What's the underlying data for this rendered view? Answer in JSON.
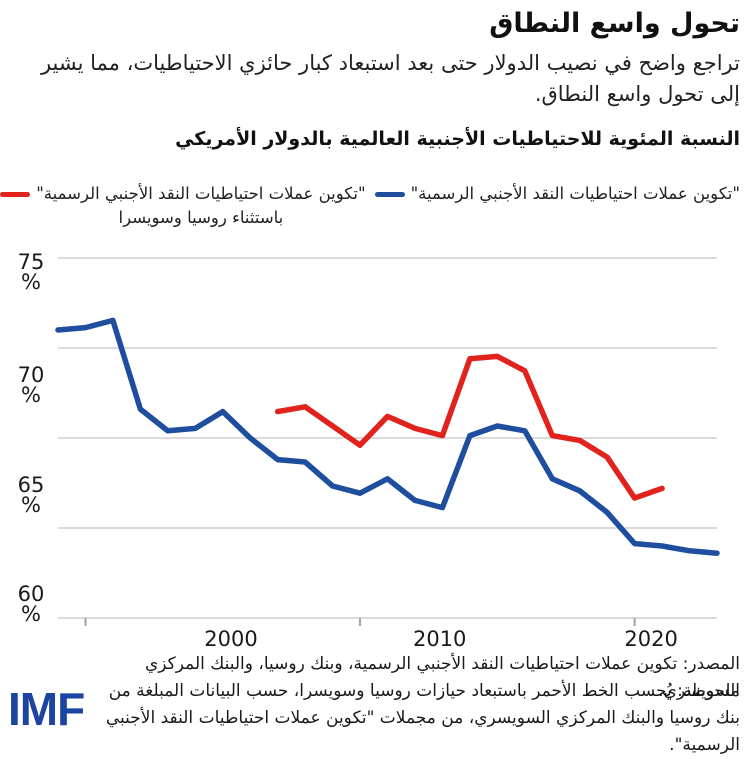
{
  "page": {
    "title": "تحول واسع النطاق",
    "subtitle": "تراجع واضح في نصيب الدولار حتى بعد استبعاد كبار حائزي الاحتياطيات، مما يشير إلى تحول واسع النطاق."
  },
  "chart_data": {
    "type": "line",
    "title": "النسبة المئوية للاحتياطيات الأجنبية العالمية بالدولار الأمريكي",
    "ylabel": "%",
    "xlim": [
      1999,
      2023
    ],
    "ylim": [
      60,
      75
    ],
    "grid": "horizontal",
    "legend_position": "top",
    "gridline_values": [
      75,
      71.25,
      67.5,
      63.75,
      60
    ],
    "yticks": [
      {
        "label": "75",
        "suffix": "%",
        "value": 75,
        "label_center_value": 74.46
      },
      {
        "label": "70",
        "suffix": "%",
        "value": 70,
        "label_center_value": 69.75
      },
      {
        "label": "65",
        "suffix": "%",
        "value": 65,
        "label_center_value": 65.17
      },
      {
        "label": "60",
        "suffix": "%",
        "value": 60,
        "label_center_value": 60.63
      }
    ],
    "xticks": [
      {
        "label": "2000",
        "tick_at": 2000,
        "label_at": 2005.3
      },
      {
        "label": "2010",
        "tick_at": 2010,
        "label_at": 2012.9
      },
      {
        "label": "2020",
        "tick_at": 2020,
        "label_at": 2020.6
      }
    ],
    "series": [
      {
        "id": "usd-share-official",
        "name": "\"تكوين عملات احتياطيات النقد الأجنبي الرسمية\"",
        "color": "#1f4e9f",
        "start_year": 1999,
        "values": [
          72.0,
          72.1,
          72.4,
          68.7,
          67.8,
          67.9,
          68.6,
          67.5,
          66.6,
          66.5,
          65.5,
          65.2,
          65.8,
          64.9,
          64.6,
          67.6,
          68.0,
          67.8,
          65.8,
          65.3,
          64.4,
          63.1,
          63.0,
          62.8,
          62.7
        ]
      },
      {
        "id": "usd-share-excl-russia-switzerland",
        "name": "\"تكوين عملات احتياطيات النقد الأجنبي الرسمية\" باستثناء روسيا وسويسرا",
        "color": "#e0231d",
        "start_year": 2007,
        "values": [
          68.6,
          68.8,
          68.0,
          67.2,
          68.4,
          67.9,
          67.6,
          70.8,
          70.9,
          70.3,
          67.6,
          67.4,
          66.7,
          65.0,
          65.4
        ]
      }
    ]
  },
  "legend": {
    "items": [
      {
        "label": "\"تكوين عملات احتياطيات النقد الأجنبي الرسمية\"",
        "label_line2": "",
        "color": "#1f4e9f"
      },
      {
        "label": "\"تكوين عملات احتياطيات النقد الأجنبي الرسمية\"",
        "label_line2": "باستثناء روسيا وسويسرا",
        "color": "#e0231d"
      }
    ]
  },
  "footer": {
    "source": "المصدر: تكوين عملات احتياطيات النقد الأجنبي الرسمية، وبنك روسيا، والبنك المركزي السويسري.",
    "note": "ملحوظة: يُحسب الخط الأحمر باستبعاد حيازات روسيا وسويسرا، حسب البيانات المبلغة من بنك روسيا والبنك المركزي السويسري، من مجملات \"تكوين عملات احتياطيات النقد الأجنبي الرسمية\".",
    "logo": "IMF",
    "logo_color": "#1b45a0"
  }
}
